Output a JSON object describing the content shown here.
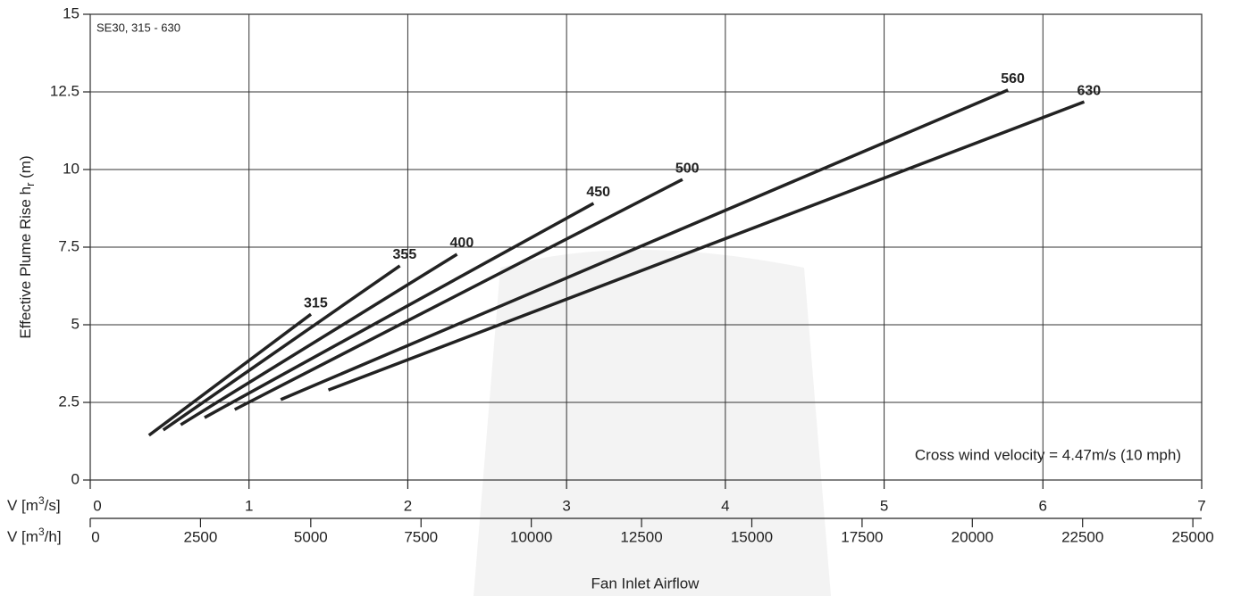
{
  "chart_data": {
    "type": "line",
    "annotation": "SE30, 315 - 630",
    "note": "Cross wind velocity = 4.47m/s (10 mph)",
    "ylabel": [
      "Effective Plume Rise h",
      "r",
      " (m)"
    ],
    "xlabel": [
      "V [m",
      "3",
      "/s]"
    ],
    "x2label": [
      "V [m",
      "3",
      "/h]"
    ],
    "x2title": "Fan Inlet Airflow",
    "xlim": [
      0,
      7
    ],
    "xticks": [
      0,
      1,
      2,
      3,
      4,
      5,
      6,
      7
    ],
    "x2lim": [
      0,
      25200
    ],
    "x2ticks": [
      0,
      2500,
      5000,
      7500,
      10000,
      12500,
      15000,
      17500,
      20000,
      22500,
      25000
    ],
    "ylim": [
      0,
      15
    ],
    "yticks": [
      0,
      2.5,
      5,
      7.5,
      10,
      12.5,
      15
    ],
    "grid": true,
    "series": [
      {
        "name": "315",
        "color": "#222222",
        "x": [
          0.37,
          1.39
        ],
        "values": [
          1.44,
          5.34
        ]
      },
      {
        "name": "355",
        "color": "#222222",
        "x": [
          0.46,
          1.95
        ],
        "values": [
          1.61,
          6.9
        ]
      },
      {
        "name": "400",
        "color": "#222222",
        "x": [
          0.57,
          2.31
        ],
        "values": [
          1.78,
          7.27
        ]
      },
      {
        "name": "450",
        "color": "#222222",
        "x": [
          0.72,
          3.17
        ],
        "values": [
          2.01,
          8.91
        ]
      },
      {
        "name": "500",
        "color": "#222222",
        "x": [
          0.91,
          3.73
        ],
        "values": [
          2.27,
          9.68
        ]
      },
      {
        "name": "560",
        "color": "#222222",
        "x": [
          1.2,
          5.78
        ],
        "values": [
          2.59,
          12.56
        ]
      },
      {
        "name": "630",
        "color": "#222222",
        "x": [
          1.5,
          6.26
        ],
        "values": [
          2.9,
          12.18
        ]
      }
    ]
  }
}
